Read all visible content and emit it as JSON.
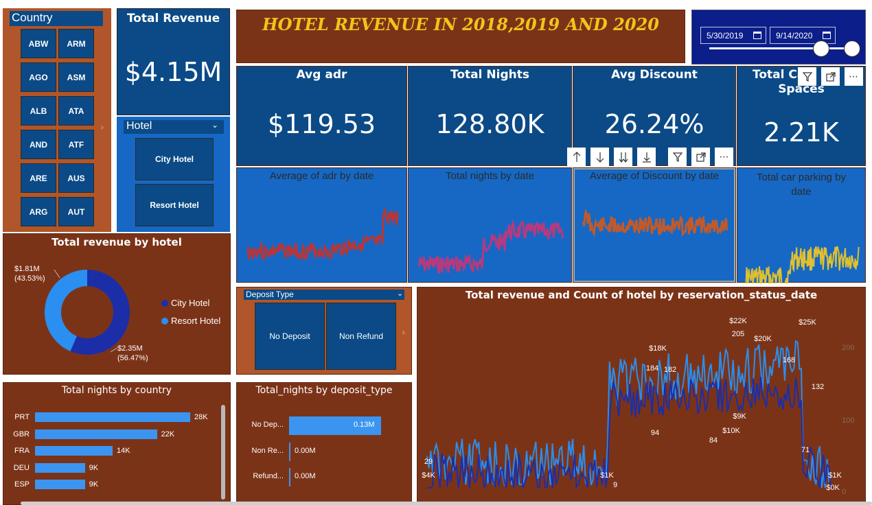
{
  "report_title": "HOTEL REVENUE IN 2018,2019 AND 2020",
  "country_slicer": {
    "title": "Country",
    "items": [
      "ABW",
      "ARM",
      "AGO",
      "ASM",
      "ALB",
      "ATA",
      "AND",
      "ATF",
      "ARE",
      "AUS",
      "ARG",
      "AUT"
    ]
  },
  "total_revenue": {
    "title": "Total Revenue",
    "value": "$4.15M"
  },
  "hotel_slicer": {
    "title": "Hotel",
    "items": [
      "City Hotel",
      "Resort Hotel"
    ]
  },
  "date_slicer": {
    "start": "5/30/2019",
    "end": "9/14/2020"
  },
  "kpis": [
    {
      "title": "Avg adr",
      "value": "$119.53"
    },
    {
      "title": "Total Nights",
      "value": "128.80K"
    },
    {
      "title": "Avg Discount",
      "value": "26.24%"
    },
    {
      "title": "Total Car Parking Spaces",
      "title_visible_line1": "Total Ca",
      "title_visible_line2": "Spaces",
      "value": "2.21K"
    }
  ],
  "mini_charts": [
    {
      "title": "Average of adr by date",
      "color": "#b5373a"
    },
    {
      "title": "Total nights by date",
      "color": "#b53a7e"
    },
    {
      "title": "Average of Discount by date",
      "color": "#c05a2c"
    },
    {
      "title": "Total car parking by date",
      "color": "#e0c030"
    }
  ],
  "visual_header_icons": [
    "sort-ascending-icon",
    "sort-descending-icon",
    "expand-all-down-icon",
    "drill-down-icon",
    "filter-icon",
    "focus-mode-icon",
    "more-options-icon"
  ],
  "donut": {
    "title": "Total revenue by hotel",
    "legend": [
      "City Hotel",
      "Resort Hotel"
    ],
    "colors": {
      "city": "#1b2ea8",
      "resort": "#2a8ff0"
    },
    "labels": [
      {
        "value": "$1.81M",
        "pct": "(43.53%)"
      },
      {
        "value": "$2.35M",
        "pct": "(56.47%)"
      }
    ]
  },
  "deposit_slicer": {
    "title": "Deposit Type",
    "items": [
      "No Deposit",
      "Non Refund"
    ]
  },
  "nights_by_country": {
    "title": "Total nights by country",
    "rows": [
      {
        "label": "PRT",
        "value": 28,
        "display": "28K"
      },
      {
        "label": "GBR",
        "value": 22,
        "display": "22K"
      },
      {
        "label": "FRA",
        "value": 14,
        "display": "14K"
      },
      {
        "label": "DEU",
        "value": 9,
        "display": "9K"
      },
      {
        "label": "ESP",
        "value": 9,
        "display": "9K"
      }
    ]
  },
  "nights_by_deposit": {
    "title": "Total_nights by deposit_type",
    "rows": [
      {
        "label": "No Dep...",
        "value": 0.13,
        "display": "0.13M"
      },
      {
        "label": "Non Re...",
        "value": 0.0,
        "display": "0.00M"
      },
      {
        "label": "Refund...",
        "value": 0.0,
        "display": "0.00M"
      }
    ]
  },
  "revenue_chart": {
    "title": "Total revenue and Count of hotel by reservation_status_date",
    "y2_ticks": [
      "200",
      "100",
      "0"
    ],
    "labels": [
      "29",
      "$4K",
      "$1K",
      "9",
      "$18K",
      "184",
      "182",
      "94",
      "$22K",
      "205",
      "$20K",
      "84",
      "$10K",
      "$9K",
      "168",
      "$25K",
      "132",
      "71",
      "$1K",
      "$0K"
    ],
    "colors": {
      "revenue": "#2a8ff0",
      "count": "#1b2ea8"
    }
  },
  "chart_data": [
    {
      "type": "bar",
      "title": "Total nights by country",
      "categories": [
        "PRT",
        "GBR",
        "FRA",
        "DEU",
        "ESP"
      ],
      "values": [
        28,
        22,
        14,
        9,
        9
      ]
    },
    {
      "type": "bar",
      "title": "Total_nights by deposit_type",
      "categories": [
        "No Dep...",
        "Non Re...",
        "Refund..."
      ],
      "values": [
        0.13,
        0.0,
        0.0
      ]
    },
    {
      "type": "pie",
      "title": "Total revenue by hotel",
      "categories": [
        "City Hotel",
        "Resort Hotel"
      ],
      "values": [
        2.35,
        1.81
      ],
      "percent": [
        56.47,
        43.53
      ]
    }
  ]
}
